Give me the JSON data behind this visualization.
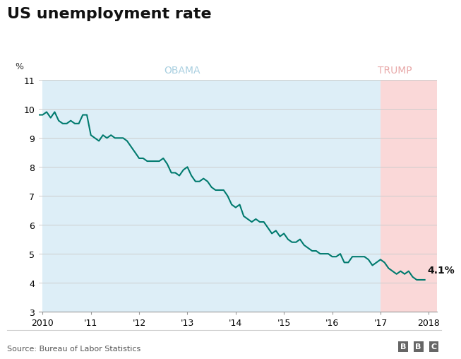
{
  "title": "US unemployment rate",
  "ylabel": "%",
  "source": "Source: Bureau of Labor Statistics",
  "bbc_label": "BBC",
  "obama_label": "OBAMA",
  "trump_label": "TRUMP",
  "obama_color": "#ddeef7",
  "trump_color": "#fad8d8",
  "obama_label_color": "#a8cfe0",
  "trump_label_color": "#e8a8a8",
  "line_color": "#007a6e",
  "annotation": "4.1%",
  "ylim": [
    3,
    11
  ],
  "yticks": [
    3,
    4,
    5,
    6,
    7,
    8,
    9,
    10,
    11
  ],
  "obama_start": 2010.0,
  "obama_end": 2017.0,
  "trump_start": 2017.0,
  "trump_end": 2018.17,
  "data": [
    [
      2009.917,
      9.8
    ],
    [
      2010.0,
      9.8
    ],
    [
      2010.083,
      9.9
    ],
    [
      2010.167,
      9.7
    ],
    [
      2010.25,
      9.9
    ],
    [
      2010.333,
      9.6
    ],
    [
      2010.417,
      9.5
    ],
    [
      2010.5,
      9.5
    ],
    [
      2010.583,
      9.6
    ],
    [
      2010.667,
      9.5
    ],
    [
      2010.75,
      9.5
    ],
    [
      2010.833,
      9.8
    ],
    [
      2010.917,
      9.8
    ],
    [
      2011.0,
      9.1
    ],
    [
      2011.083,
      9.0
    ],
    [
      2011.167,
      8.9
    ],
    [
      2011.25,
      9.1
    ],
    [
      2011.333,
      9.0
    ],
    [
      2011.417,
      9.1
    ],
    [
      2011.5,
      9.0
    ],
    [
      2011.583,
      9.0
    ],
    [
      2011.667,
      9.0
    ],
    [
      2011.75,
      8.9
    ],
    [
      2011.833,
      8.7
    ],
    [
      2011.917,
      8.5
    ],
    [
      2012.0,
      8.3
    ],
    [
      2012.083,
      8.3
    ],
    [
      2012.167,
      8.2
    ],
    [
      2012.25,
      8.2
    ],
    [
      2012.333,
      8.2
    ],
    [
      2012.417,
      8.2
    ],
    [
      2012.5,
      8.3
    ],
    [
      2012.583,
      8.1
    ],
    [
      2012.667,
      7.8
    ],
    [
      2012.75,
      7.8
    ],
    [
      2012.833,
      7.7
    ],
    [
      2012.917,
      7.9
    ],
    [
      2013.0,
      8.0
    ],
    [
      2013.083,
      7.7
    ],
    [
      2013.167,
      7.5
    ],
    [
      2013.25,
      7.5
    ],
    [
      2013.333,
      7.6
    ],
    [
      2013.417,
      7.5
    ],
    [
      2013.5,
      7.3
    ],
    [
      2013.583,
      7.2
    ],
    [
      2013.667,
      7.2
    ],
    [
      2013.75,
      7.2
    ],
    [
      2013.833,
      7.0
    ],
    [
      2013.917,
      6.7
    ],
    [
      2014.0,
      6.6
    ],
    [
      2014.083,
      6.7
    ],
    [
      2014.167,
      6.3
    ],
    [
      2014.25,
      6.2
    ],
    [
      2014.333,
      6.1
    ],
    [
      2014.417,
      6.2
    ],
    [
      2014.5,
      6.1
    ],
    [
      2014.583,
      6.1
    ],
    [
      2014.667,
      5.9
    ],
    [
      2014.75,
      5.7
    ],
    [
      2014.833,
      5.8
    ],
    [
      2014.917,
      5.6
    ],
    [
      2015.0,
      5.7
    ],
    [
      2015.083,
      5.5
    ],
    [
      2015.167,
      5.4
    ],
    [
      2015.25,
      5.4
    ],
    [
      2015.333,
      5.5
    ],
    [
      2015.417,
      5.3
    ],
    [
      2015.5,
      5.2
    ],
    [
      2015.583,
      5.1
    ],
    [
      2015.667,
      5.1
    ],
    [
      2015.75,
      5.0
    ],
    [
      2015.833,
      5.0
    ],
    [
      2015.917,
      5.0
    ],
    [
      2016.0,
      4.9
    ],
    [
      2016.083,
      4.9
    ],
    [
      2016.167,
      5.0
    ],
    [
      2016.25,
      4.7
    ],
    [
      2016.333,
      4.7
    ],
    [
      2016.417,
      4.9
    ],
    [
      2016.5,
      4.9
    ],
    [
      2016.583,
      4.9
    ],
    [
      2016.667,
      4.9
    ],
    [
      2016.75,
      4.8
    ],
    [
      2016.833,
      4.6
    ],
    [
      2016.917,
      4.7
    ],
    [
      2017.0,
      4.8
    ],
    [
      2017.083,
      4.7
    ],
    [
      2017.167,
      4.5
    ],
    [
      2017.25,
      4.4
    ],
    [
      2017.333,
      4.3
    ],
    [
      2017.417,
      4.4
    ],
    [
      2017.5,
      4.3
    ],
    [
      2017.583,
      4.4
    ],
    [
      2017.667,
      4.2
    ],
    [
      2017.75,
      4.1
    ],
    [
      2017.833,
      4.1
    ],
    [
      2017.917,
      4.1
    ]
  ],
  "xticks": [
    2010,
    2011,
    2012,
    2013,
    2014,
    2015,
    2016,
    2017,
    2018
  ],
  "xticklabels": [
    "2010",
    "'11",
    "'12",
    "'13",
    "'14",
    "'15",
    "'16",
    "'17",
    "2018"
  ],
  "xlim": [
    2009.92,
    2018.17
  ]
}
